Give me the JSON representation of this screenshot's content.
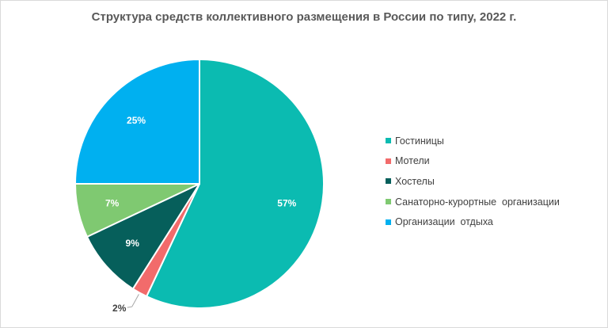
{
  "chart_data": {
    "type": "pie",
    "title": "Структура средств коллективного размещения в России по типу, 2022 г.",
    "slices": [
      {
        "label": "Гостиницы",
        "value": 57,
        "value_label": "57%",
        "color": "#0bbbb1"
      },
      {
        "label": "Мотели",
        "value": 2,
        "value_label": "2%",
        "color": "#f26b6b"
      },
      {
        "label": "Хостелы",
        "value": 9,
        "value_label": "9%",
        "color": "#065f5b"
      },
      {
        "label": "Санаторно-курортные  организации",
        "value": 7,
        "value_label": "7%",
        "color": "#7fc971"
      },
      {
        "label": "Организации  отдыха",
        "value": 25,
        "value_label": "25%",
        "color": "#00b0f0"
      }
    ],
    "legend_position": "right"
  }
}
